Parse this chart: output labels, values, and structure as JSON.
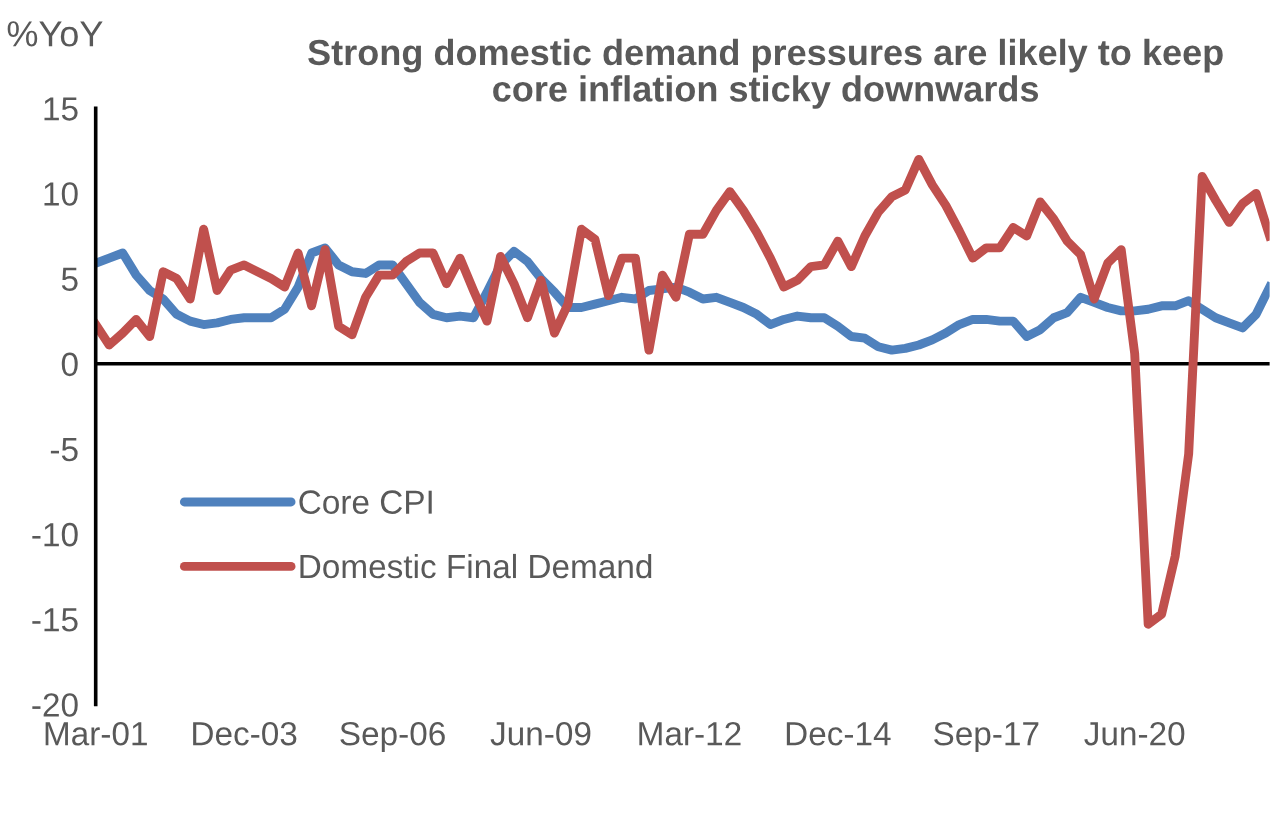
{
  "chart_data": {
    "type": "line",
    "title": "Strong domestic demand pressures are likely to keep\ncore inflation sticky downwards",
    "ylabel": "%YoY",
    "categories": [
      "Mar-01",
      null,
      null,
      null,
      null,
      null,
      null,
      null,
      null,
      null,
      null,
      "Dec-03",
      null,
      null,
      null,
      null,
      null,
      null,
      null,
      null,
      null,
      null,
      "Sep-06",
      null,
      null,
      null,
      null,
      null,
      null,
      null,
      null,
      null,
      null,
      "Jun-09",
      null,
      null,
      null,
      null,
      null,
      null,
      null,
      null,
      null,
      null,
      "Mar-12",
      null,
      null,
      null,
      null,
      null,
      null,
      null,
      null,
      null,
      null,
      "Dec-14",
      null,
      null,
      null,
      null,
      null,
      null,
      null,
      null,
      null,
      null,
      "Sep-17",
      null,
      null,
      null,
      null,
      null,
      null,
      null,
      null,
      null,
      null,
      "Jun-20",
      null,
      null,
      null,
      null,
      null,
      null,
      null,
      null,
      null,
      null
    ],
    "series": [
      {
        "name": "Core CPI",
        "color": "#4f81bd",
        "values": [
          5.9,
          6.2,
          6.5,
          5.2,
          4.3,
          3.8,
          2.9,
          2.5,
          2.3,
          2.4,
          2.6,
          2.7,
          2.7,
          2.7,
          3.2,
          4.5,
          6.5,
          6.8,
          5.8,
          5.4,
          5.3,
          5.8,
          5.8,
          4.7,
          3.6,
          2.9,
          2.7,
          2.8,
          2.7,
          4.2,
          5.8,
          6.6,
          6.0,
          5.0,
          4.2,
          3.3,
          3.3,
          3.5,
          3.7,
          3.9,
          3.8,
          4.3,
          4.4,
          4.5,
          4.2,
          3.8,
          3.9,
          3.6,
          3.3,
          2.9,
          2.3,
          2.6,
          2.8,
          2.7,
          2.7,
          2.2,
          1.6,
          1.5,
          1.0,
          0.8,
          0.9,
          1.1,
          1.4,
          1.8,
          2.3,
          2.6,
          2.6,
          2.5,
          2.5,
          1.6,
          2.0,
          2.7,
          3.0,
          3.9,
          3.6,
          3.3,
          3.1,
          3.1,
          3.2,
          3.4,
          3.4,
          3.7,
          3.2,
          2.7,
          2.4,
          2.1,
          2.9,
          4.5
        ]
      },
      {
        "name": "Domestic Final Demand",
        "color": "#c0504d",
        "values": [
          2.3,
          1.1,
          1.8,
          2.6,
          1.6,
          5.4,
          5.0,
          3.8,
          7.9,
          4.3,
          5.5,
          5.8,
          5.4,
          5.0,
          4.5,
          6.5,
          3.4,
          6.7,
          2.2,
          1.7,
          3.9,
          5.2,
          5.2,
          6.0,
          6.5,
          6.5,
          4.7,
          6.2,
          4.3,
          2.5,
          6.3,
          4.7,
          2.7,
          4.9,
          1.8,
          3.5,
          7.9,
          7.3,
          4.0,
          6.2,
          6.2,
          0.8,
          5.2,
          3.9,
          7.6,
          7.6,
          9.0,
          10.1,
          9.0,
          7.7,
          6.2,
          4.5,
          4.9,
          5.7,
          5.8,
          7.2,
          5.7,
          7.5,
          8.9,
          9.8,
          10.2,
          12.0,
          10.5,
          9.3,
          7.8,
          6.2,
          6.8,
          6.8,
          8.0,
          7.5,
          9.5,
          8.5,
          7.2,
          6.4,
          3.8,
          5.9,
          6.7,
          0.6,
          -15.3,
          -14.7,
          -11.3,
          -5.3,
          11.0,
          9.6,
          8.3,
          9.4,
          10.0,
          7.5
        ]
      }
    ],
    "ylim": [
      -20,
      15
    ],
    "yticks": [
      -20,
      -15,
      -10,
      -5,
      0,
      5,
      10,
      15
    ],
    "ref_lines": [
      {
        "axis": "y",
        "value": 0,
        "color": "#000000"
      }
    ],
    "legend": "lower left",
    "marker": "none",
    "line_style": "solid"
  }
}
